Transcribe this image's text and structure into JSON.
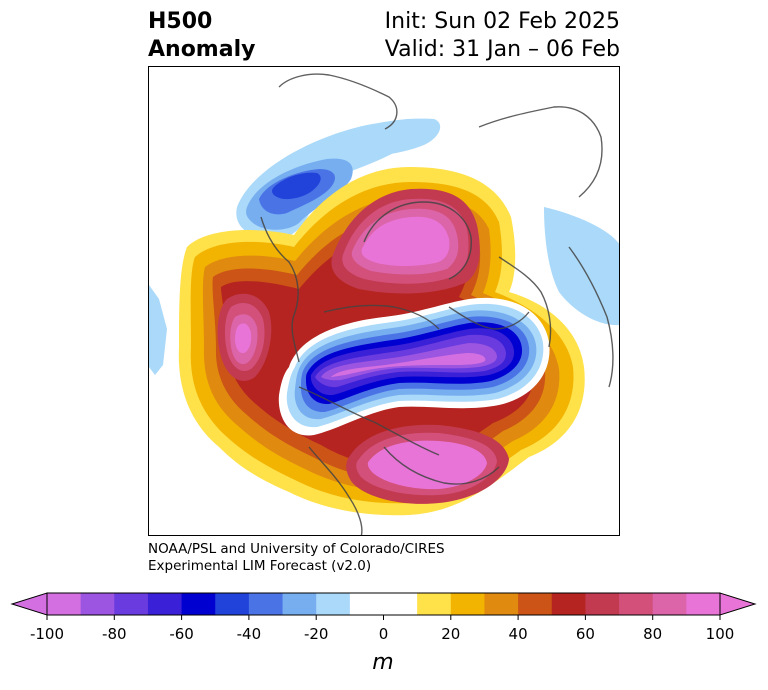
{
  "title": {
    "variable": "H500",
    "type": "Anomaly",
    "init": "Init: Sun 02 Feb 2025",
    "valid": "Valid: 31 Jan – 06 Feb"
  },
  "credit": {
    "line1": "NOAA/PSL and University of Colorado/CIRES",
    "line2": "Experimental LIM Forecast (v2.0)"
  },
  "colorbar": {
    "unit": "m",
    "ticks": [
      "-100",
      "-80",
      "-60",
      "-40",
      "-20",
      "0",
      "20",
      "40",
      "60",
      "80",
      "100"
    ],
    "under_color": "#d36fe0",
    "over_color": "#e874d8",
    "colors": [
      "#d36fe0",
      "#9b55e0",
      "#6a3bdf",
      "#3a20d6",
      "#0000d0",
      "#2243da",
      "#4a74e6",
      "#76aef0",
      "#aad9f9",
      "#ffffff",
      "#ffffff",
      "#ffe14a",
      "#f2b400",
      "#e08a10",
      "#cc5416",
      "#b52420",
      "#c23a50",
      "#d2507a",
      "#db65a8",
      "#e874d8"
    ]
  }
}
